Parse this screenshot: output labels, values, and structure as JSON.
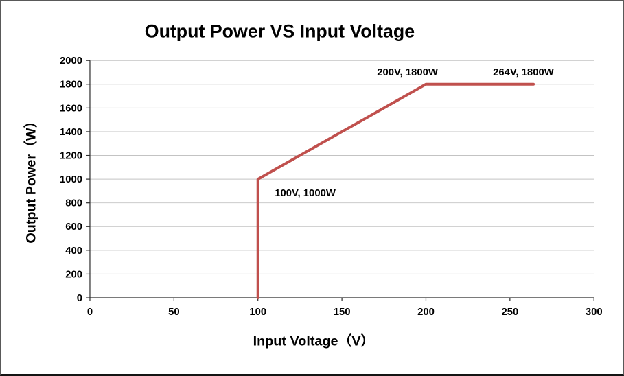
{
  "chart_data": {
    "type": "line",
    "title": "Output Power VS Input Voltage",
    "xlabel": "Input Voltage（V）",
    "ylabel": "Output Power（W）",
    "x": [
      100,
      100,
      200,
      264
    ],
    "y": [
      0,
      1000,
      1800,
      1800
    ],
    "xlim": [
      0,
      300
    ],
    "ylim": [
      0,
      2000
    ],
    "x_ticks": [
      0,
      50,
      100,
      150,
      200,
      250,
      300
    ],
    "y_ticks": [
      0,
      200,
      400,
      600,
      800,
      1000,
      1200,
      1400,
      1600,
      1800,
      2000
    ],
    "grid": "horizontal",
    "legend": "none",
    "line_color": "#c0504d",
    "annotations": [
      {
        "text": "100V, 1000W",
        "x": 110,
        "y": 855,
        "anchor": "start"
      },
      {
        "text": "200V, 1800W",
        "x": 189,
        "y": 1875,
        "anchor": "middle"
      },
      {
        "text": "264V, 1800W",
        "x": 258,
        "y": 1875,
        "anchor": "middle"
      }
    ]
  }
}
